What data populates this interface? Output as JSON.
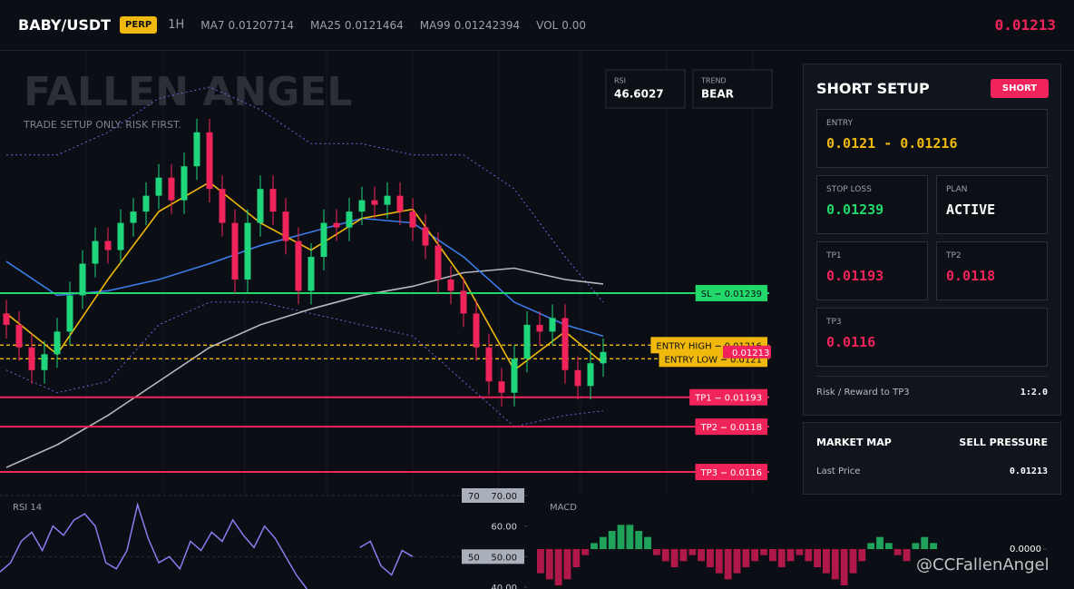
{
  "header": {
    "symbol": "BABY/USDT",
    "badge": "PERP",
    "interval": "1H",
    "indicators": [
      {
        "label": "MA7",
        "value": 0.01207714
      },
      {
        "label": "MA25",
        "value": 0.0121464
      },
      {
        "label": "MA99",
        "value": 0.01242394
      },
      {
        "label": "VOL",
        "value": "0.00"
      }
    ],
    "price": 0.01213
  },
  "chart_data": [
    {
      "type": "candlestick",
      "title": "FALLEN ANGEL",
      "subtitle": "TRADE SETUP ONLY. RISK FIRST.",
      "up_color": "#1fd67c",
      "down_color": "#f0245a",
      "ylim": [
        0.0115,
        0.01346
      ],
      "open": [
        0.0123,
        0.01225,
        0.01215,
        0.01205,
        0.01212,
        0.01222,
        0.01238,
        0.01252,
        0.01262,
        0.01258,
        0.0127,
        0.01275,
        0.01282,
        0.0129,
        0.0128,
        0.01295,
        0.0131,
        0.01285,
        0.0127,
        0.01245,
        0.0127,
        0.01285,
        0.01275,
        0.01262,
        0.0124,
        0.01255,
        0.0127,
        0.01268,
        0.01275,
        0.0128,
        0.01278,
        0.01282,
        0.01275,
        0.01268,
        0.0126,
        0.01245,
        0.0124,
        0.0123,
        0.01215,
        0.012,
        0.01195,
        0.0121,
        0.01225,
        0.01222,
        0.01228,
        0.01205,
        0.01198,
        0.01208
      ],
      "high": [
        0.01236,
        0.01231,
        0.01221,
        0.01218,
        0.01228,
        0.01244,
        0.01258,
        0.01268,
        0.01268,
        0.01276,
        0.01281,
        0.01288,
        0.01296,
        0.01296,
        0.01301,
        0.01316,
        0.01316,
        0.01291,
        0.01276,
        0.01276,
        0.01291,
        0.01291,
        0.01281,
        0.01268,
        0.01261,
        0.01276,
        0.01276,
        0.01281,
        0.01286,
        0.01286,
        0.01288,
        0.01288,
        0.01281,
        0.01274,
        0.01266,
        0.01251,
        0.01246,
        0.01236,
        0.01221,
        0.01206,
        0.01216,
        0.01231,
        0.01231,
        0.01234,
        0.01234,
        0.01211,
        0.01214,
        0.01219
      ],
      "low": [
        0.01219,
        0.01209,
        0.01199,
        0.01199,
        0.01206,
        0.01216,
        0.01232,
        0.01246,
        0.01252,
        0.01252,
        0.01264,
        0.01269,
        0.01276,
        0.01274,
        0.01274,
        0.01289,
        0.01279,
        0.01264,
        0.01239,
        0.01239,
        0.01264,
        0.01269,
        0.01256,
        0.01234,
        0.01234,
        0.01249,
        0.01262,
        0.01262,
        0.01269,
        0.01272,
        0.01272,
        0.01269,
        0.01262,
        0.01254,
        0.01239,
        0.01234,
        0.01224,
        0.01209,
        0.01194,
        0.01189,
        0.01189,
        0.01204,
        0.01216,
        0.01216,
        0.01199,
        0.01192,
        0.01192,
        0.01202
      ],
      "close": [
        0.01225,
        0.01215,
        0.01205,
        0.01212,
        0.01222,
        0.01238,
        0.01252,
        0.01262,
        0.01258,
        0.0127,
        0.01275,
        0.01282,
        0.0129,
        0.0128,
        0.01295,
        0.0131,
        0.01285,
        0.0127,
        0.01245,
        0.0127,
        0.01285,
        0.01275,
        0.01262,
        0.0124,
        0.01255,
        0.0127,
        0.01268,
        0.01275,
        0.0128,
        0.01278,
        0.01282,
        0.01275,
        0.01268,
        0.0126,
        0.01245,
        0.0124,
        0.0123,
        0.01215,
        0.012,
        0.01195,
        0.0121,
        0.01225,
        0.01222,
        0.01228,
        0.01205,
        0.01198,
        0.01208,
        0.01213
      ],
      "lines": [
        {
          "color": "#6f63d9",
          "dash": true,
          "x": [
            0,
            4,
            8,
            12,
            16,
            20,
            24,
            28,
            32,
            36,
            40,
            44,
            47
          ],
          "values": [
            0.013,
            0.013,
            0.0131,
            0.01325,
            0.0133,
            0.0132,
            0.01305,
            0.01305,
            0.013,
            0.013,
            0.01285,
            0.01255,
            0.01235
          ]
        },
        {
          "color": "#6f63d9",
          "dash": true,
          "x": [
            0,
            4,
            8,
            12,
            16,
            20,
            24,
            28,
            32,
            36,
            40,
            44,
            47
          ],
          "values": [
            0.01205,
            0.01195,
            0.012,
            0.01225,
            0.01235,
            0.01235,
            0.0123,
            0.01225,
            0.0122,
            0.012,
            0.0118,
            0.01185,
            0.01187
          ]
        },
        {
          "color": "#b7b7bd",
          "dash": false,
          "x": [
            0,
            4,
            8,
            12,
            16,
            20,
            24,
            28,
            32,
            36,
            40,
            44,
            47
          ],
          "values": [
            0.01162,
            0.01172,
            0.01185,
            0.012,
            0.01215,
            0.01225,
            0.01232,
            0.01238,
            0.01242,
            0.01248,
            0.0125,
            0.01245,
            0.01243
          ]
        },
        {
          "color": "#3b7be8",
          "dash": false,
          "x": [
            0,
            4,
            8,
            12,
            16,
            20,
            24,
            28,
            32,
            36,
            40,
            44,
            47
          ],
          "values": [
            0.01253,
            0.01238,
            0.0124,
            0.01245,
            0.01252,
            0.0126,
            0.01266,
            0.01272,
            0.0127,
            0.01255,
            0.01235,
            0.01225,
            0.0122
          ]
        },
        {
          "color": "#f0b90b",
          "dash": false,
          "x": [
            0,
            4,
            8,
            12,
            16,
            20,
            24,
            28,
            32,
            36,
            40,
            44,
            47
          ],
          "values": [
            0.0123,
            0.01212,
            0.01245,
            0.01275,
            0.01288,
            0.0127,
            0.01258,
            0.01272,
            0.01276,
            0.01245,
            0.01205,
            0.01222,
            0.01208
          ]
        }
      ],
      "levels": [
        {
          "label": "SL",
          "value": 0.01239,
          "color": "#22d86a",
          "text_color": "#0b0e14",
          "style": "solid"
        },
        {
          "label": "ENTRY HIGH",
          "value": 0.01216,
          "color": "#f0b90b",
          "text_color": "#0b0e14",
          "style": "dashed"
        },
        {
          "label": "ENTRY LOW",
          "value": 0.0121,
          "color": "#f0b90b",
          "text_color": "#0b0e14",
          "style": "dashed"
        },
        {
          "label": "TP1",
          "value": 0.01193,
          "color": "#f0245a",
          "text_color": "#ffffff",
          "style": "solid"
        },
        {
          "label": "TP2",
          "value": 0.0118,
          "color": "#f0245a",
          "text_color": "#ffffff",
          "style": "solid"
        },
        {
          "label": "TP3",
          "value": 0.0116,
          "color": "#f0245a",
          "text_color": "#ffffff",
          "style": "solid"
        }
      ],
      "stats": [
        {
          "label": "RSI",
          "value": 46.6027
        },
        {
          "label": "TREND",
          "value": "BEAR"
        }
      ]
    },
    {
      "type": "line",
      "title": "RSI 14",
      "color": "#8b7cf0",
      "ylim": [
        39.4,
        70.3
      ],
      "values": [
        45,
        48,
        55,
        58,
        52,
        60,
        57,
        62,
        64,
        60,
        48,
        46,
        52,
        67,
        56,
        48,
        50,
        46,
        55,
        52,
        58,
        55,
        62,
        57,
        53,
        60,
        56,
        50,
        44,
        39.4,
        null,
        null,
        null,
        null,
        53,
        55,
        47,
        44,
        52,
        50
      ],
      "yticks": [
        {
          "value": 40,
          "label": "40.00"
        },
        {
          "value": 50,
          "label": "50.00"
        },
        {
          "value": 60,
          "label": "60.00"
        },
        {
          "value": 70,
          "label": "70.00"
        }
      ],
      "levels": [
        70,
        50
      ]
    },
    {
      "type": "bar",
      "title": "MACD",
      "up_color": "#1fa35a",
      "down_color": "#b0184a",
      "ylim": [
        -6.6e-05,
        9e-05
      ],
      "yticks": [
        {
          "value": 0,
          "label": "0.0000"
        }
      ],
      "values": [
        -4e-05,
        -5e-05,
        -6e-05,
        -5e-05,
        -3e-05,
        -1e-05,
        1e-05,
        2e-05,
        3e-05,
        4e-05,
        4e-05,
        3e-05,
        2e-05,
        -1e-05,
        -2e-05,
        -3e-05,
        -2e-05,
        -1e-05,
        -2e-05,
        -3e-05,
        -4e-05,
        -5e-05,
        -4e-05,
        -3e-05,
        -2e-05,
        -1e-05,
        -2e-05,
        -3e-05,
        -2e-05,
        -1e-05,
        -2e-05,
        -3e-05,
        -4e-05,
        -5e-05,
        -6e-05,
        -4e-05,
        -2e-05,
        1e-05,
        2e-05,
        1e-05,
        -1e-05,
        -2e-05,
        1e-05,
        2e-05,
        1e-05
      ]
    }
  ],
  "panel": {
    "title": "SHORT SETUP",
    "badge": "SHORT",
    "cards": [
      {
        "label": "ENTRY",
        "value": "0.0121 - 0.01216",
        "color": "#f0b90b"
      },
      {
        "label": "STOP LOSS",
        "value": 0.01239,
        "color": "#22d86a"
      },
      {
        "label": "PLAN",
        "value": "ACTIVE",
        "color": "#ffffff"
      },
      {
        "label": "TP1",
        "value": 0.01193,
        "color": "#f0245a"
      },
      {
        "label": "TP2",
        "value": 0.0118,
        "color": "#f0245a"
      },
      {
        "label": "TP3",
        "value": 0.0116,
        "color": "#f0245a"
      }
    ],
    "rr_label": "Risk / Reward to TP3",
    "rr": "1:2.0"
  },
  "market_map": {
    "title": "MARKET MAP",
    "status": "SELL PRESSURE",
    "label": "Last Price"
  },
  "watermark": "@CCFallenAngel"
}
